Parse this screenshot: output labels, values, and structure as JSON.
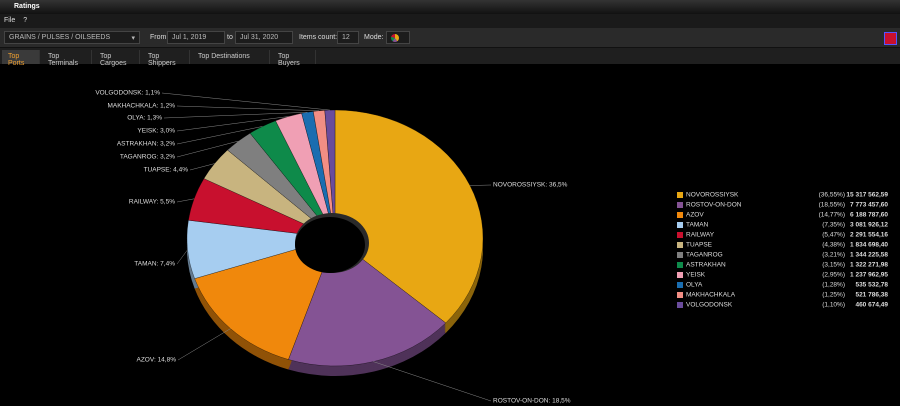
{
  "window": {
    "title": "Ratings"
  },
  "menu": [
    "File",
    "?"
  ],
  "toolbar": {
    "commodity": "GRAINS / PULSES / OILSEEDS",
    "from_label": "From",
    "from": "Jul 1, 2019",
    "to_label": "to",
    "to": "Jul 31, 2020",
    "items_label": "Items count:",
    "items_count": 12,
    "mode_label": "Mode:"
  },
  "tabs": [
    "Top Ports",
    "Top Terminals",
    "Top Cargoes",
    "Top Shippers",
    "Top Destinations",
    "Top Buyers"
  ],
  "chart_data": {
    "type": "pie",
    "donut": true,
    "categories": [
      "NOVOROSSIYSK",
      "ROSTOV-ON-DON",
      "AZOV",
      "TAMAN",
      "RAILWAY",
      "TUAPSE",
      "TAGANROG",
      "ASTRAKHAN",
      "YEISK",
      "OLYA",
      "MAKHACHKALA",
      "VOLGODONSK"
    ],
    "values": [
      15317562.59,
      7773457.6,
      6188787.6,
      3081926.12,
      2291554.16,
      1834698.4,
      1344225.58,
      1322271.98,
      1237962.95,
      535532.78,
      521786.38,
      460674.49
    ],
    "value_labels": [
      "15 317 562,59",
      "7 773 457,60",
      "6 188 787,60",
      "3 081 926,12",
      "2 291 554,16",
      "1 834 698,40",
      "1 344 225,58",
      "1 322 271,98",
      "1 237 962,95",
      "535 532,78",
      "521 786,38",
      "460 674,49"
    ],
    "share_labels": [
      "(36,55%)",
      "(18,55%)",
      "(14,77%)",
      "(7,35%)",
      "(5,47%)",
      "(4,38%)",
      "(3,21%)",
      "(3,15%)",
      "(2,95%)",
      "(1,28%)",
      "(1,25%)",
      "(1,10%)"
    ],
    "slice_labels": [
      "NOVOROSSIYSK: 36,5%",
      "ROSTOV-ON-DON: 18,5%",
      "AZOV: 14,8%",
      "TAMAN: 7,4%",
      "RAILWAY: 5,5%",
      "TUAPSE: 4,4%",
      "TAGANROG: 3,2%",
      "ASTRAKHAN: 3,2%",
      "YEISK: 3,0%",
      "OLYA: 1,3%",
      "MAKHACHKALA: 1,2%",
      "VOLGODONSK: 1,1%"
    ],
    "colors": [
      "#e8a713",
      "#845394",
      "#f0880c",
      "#a6cdf0",
      "#c8102e",
      "#c8b47f",
      "#7f7f7f",
      "#0e8a4a",
      "#f09fb4",
      "#1a6db0",
      "#f28e84",
      "#6a4c9c"
    ],
    "legend": "right"
  }
}
